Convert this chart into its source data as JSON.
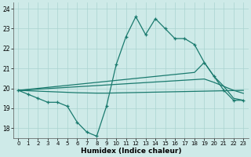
{
  "xlabel": "Humidex (Indice chaleur)",
  "x": [
    0,
    1,
    2,
    3,
    4,
    5,
    6,
    7,
    8,
    9,
    10,
    11,
    12,
    13,
    14,
    15,
    16,
    17,
    18,
    19,
    20,
    21,
    22,
    23
  ],
  "line_main": [
    19.9,
    19.7,
    19.5,
    19.3,
    19.3,
    19.1,
    18.3,
    17.8,
    17.6,
    19.1,
    21.2,
    22.6,
    23.6,
    22.7,
    23.5,
    23.0,
    22.5,
    22.5,
    22.2,
    21.3,
    20.6,
    19.9,
    19.4,
    19.4
  ],
  "line_upper": [
    19.9,
    19.95,
    20.0,
    20.05,
    20.1,
    20.15,
    20.2,
    20.25,
    20.3,
    20.35,
    20.4,
    20.45,
    20.5,
    20.55,
    20.6,
    20.65,
    20.7,
    20.75,
    20.8,
    21.3,
    20.6,
    20.1,
    19.5,
    19.4
  ],
  "line_mid": [
    19.9,
    19.93,
    19.96,
    19.99,
    20.02,
    20.05,
    20.08,
    20.11,
    20.14,
    20.17,
    20.2,
    20.23,
    20.26,
    20.29,
    20.32,
    20.35,
    20.38,
    20.41,
    20.44,
    20.47,
    20.3,
    20.1,
    19.9,
    19.75
  ],
  "line_flat": [
    19.9,
    19.88,
    19.86,
    19.84,
    19.82,
    19.8,
    19.78,
    19.77,
    19.76,
    19.76,
    19.77,
    19.78,
    19.79,
    19.8,
    19.81,
    19.82,
    19.83,
    19.84,
    19.85,
    19.86,
    19.87,
    19.88,
    19.89,
    19.9
  ],
  "ylim": [
    17.5,
    24.3
  ],
  "yticks": [
    18,
    19,
    20,
    21,
    22,
    23,
    24
  ],
  "xticks": [
    0,
    1,
    2,
    3,
    4,
    5,
    6,
    7,
    8,
    9,
    10,
    11,
    12,
    13,
    14,
    15,
    16,
    17,
    18,
    19,
    20,
    21,
    22,
    23
  ],
  "line_color": "#1a7a6e",
  "bg_color": "#ceeae8",
  "grid_color": "#aad4d0"
}
